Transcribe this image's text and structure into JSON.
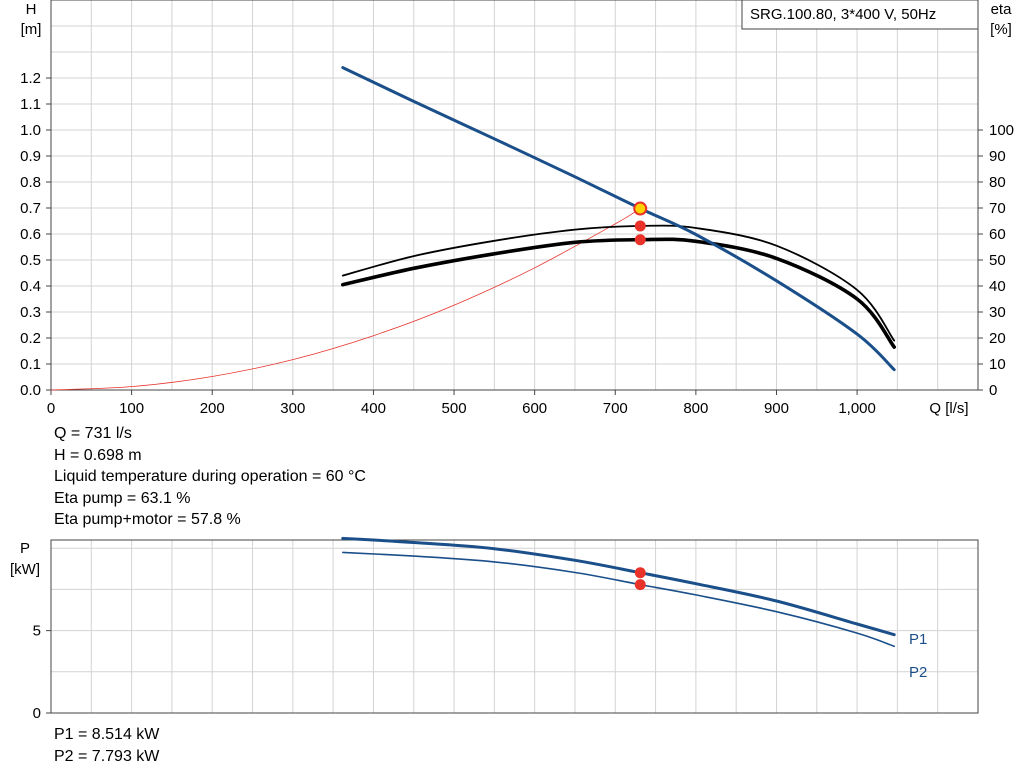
{
  "chart_data": [
    {
      "type": "line",
      "title": "SRG.100.80, 3*400 V, 50Hz",
      "xlabel": "Q [l/s]",
      "ylabel_left_name": "H",
      "ylabel_left_unit": "[m]",
      "ylabel_right_name": "eta",
      "ylabel_right_unit": "[%]",
      "xlim": [
        0,
        1150
      ],
      "ylim_left": [
        0,
        1.5
      ],
      "ylim_right": [
        0,
        150
      ],
      "grid": true,
      "x_ticks": [
        "0",
        "100",
        "200",
        "300",
        "400",
        "500",
        "600",
        "700",
        "800",
        "900",
        "1,000"
      ],
      "x_tick_values": [
        0,
        100,
        200,
        300,
        400,
        500,
        600,
        700,
        800,
        900,
        1000
      ],
      "y_ticks_left": [
        "0.0",
        "0.1",
        "0.2",
        "0.3",
        "0.4",
        "0.5",
        "0.6",
        "0.7",
        "0.8",
        "0.9",
        "1.0",
        "1.1",
        "1.2"
      ],
      "y_tick_values_left": [
        0,
        0.1,
        0.2,
        0.3,
        0.4,
        0.5,
        0.6,
        0.7,
        0.8,
        0.9,
        1.0,
        1.1,
        1.2
      ],
      "y_ticks_right": [
        "0",
        "10",
        "20",
        "30",
        "40",
        "50",
        "60",
        "70",
        "80",
        "90",
        "100"
      ],
      "y_tick_values_right": [
        0,
        10,
        20,
        30,
        40,
        50,
        60,
        70,
        80,
        90,
        100
      ],
      "series": [
        {
          "axis": "left",
          "color": "#1a4f8a",
          "width": 3,
          "x": [
            362,
            450,
            550,
            650,
            731,
            800,
            900,
            1000,
            1046
          ],
          "y": [
            1.24,
            1.11,
            0.966,
            0.82,
            0.698,
            0.598,
            0.42,
            0.215,
            0.078
          ]
        },
        {
          "axis": "right",
          "color": "#000000",
          "width": 1.8,
          "x": [
            362,
            450,
            550,
            650,
            731,
            800,
            900,
            1000,
            1046
          ],
          "y": [
            44,
            51.5,
            57.4,
            61.7,
            63.1,
            62.3,
            55.5,
            38.5,
            19
          ]
        },
        {
          "axis": "right",
          "color": "#000000",
          "width": 3.6,
          "x": [
            362,
            450,
            550,
            650,
            731,
            800,
            900,
            1000,
            1046
          ],
          "y": [
            40.5,
            46.8,
            52.4,
            56.8,
            57.8,
            57.2,
            50.6,
            35,
            16.5
          ]
        },
        {
          "axis": "left",
          "color": "#e8322a",
          "width": 0.8,
          "x": [
            0,
            100,
            200,
            300,
            400,
            500,
            600,
            700,
            731
          ],
          "y": [
            0,
            0.013,
            0.052,
            0.117,
            0.209,
            0.326,
            0.47,
            0.639,
            0.698
          ]
        }
      ],
      "operating_point": {
        "x": 731,
        "y": 0.698,
        "fill": "#ffd200",
        "stroke": "#e8322a"
      },
      "points": [
        {
          "x": 731,
          "y_right": 63.1,
          "fill": "#e8322a"
        },
        {
          "x": 731,
          "y_right": 57.8,
          "fill": "#e8322a"
        }
      ]
    },
    {
      "type": "line",
      "ylabel_name": "P",
      "ylabel_unit": "[kW]",
      "xlim": [
        0,
        1150
      ],
      "ylim": [
        0,
        10.5
      ],
      "grid": true,
      "y_ticks": [
        "0",
        "5"
      ],
      "y_tick_values": [
        0,
        5
      ],
      "series": [
        {
          "name": "P1",
          "color": "#1a4f8a",
          "width": 3,
          "x": [
            362,
            450,
            550,
            650,
            731,
            800,
            900,
            1000,
            1046
          ],
          "y": [
            10.6,
            10.35,
            9.97,
            9.27,
            8.514,
            7.85,
            6.8,
            5.4,
            4.75
          ]
        },
        {
          "name": "P2",
          "color": "#1a4f8a",
          "width": 1.6,
          "x": [
            362,
            450,
            550,
            650,
            731,
            800,
            900,
            1000,
            1046
          ],
          "y": [
            9.75,
            9.52,
            9.17,
            8.53,
            7.793,
            7.17,
            6.15,
            4.85,
            4.05
          ]
        }
      ],
      "points": [
        {
          "x": 731,
          "y": 8.514,
          "fill": "#e8322a"
        },
        {
          "x": 731,
          "y": 7.793,
          "fill": "#e8322a"
        }
      ]
    }
  ],
  "info_top": [
    "Q = 731 l/s",
    "H = 0.698 m",
    "Liquid temperature during operation = 60 °C",
    "Eta pump = 63.1 %",
    "Eta pump+motor = 57.8 %"
  ],
  "info_bottom": [
    "P1 = 8.514 kW",
    "P2 = 7.793 kW"
  ]
}
